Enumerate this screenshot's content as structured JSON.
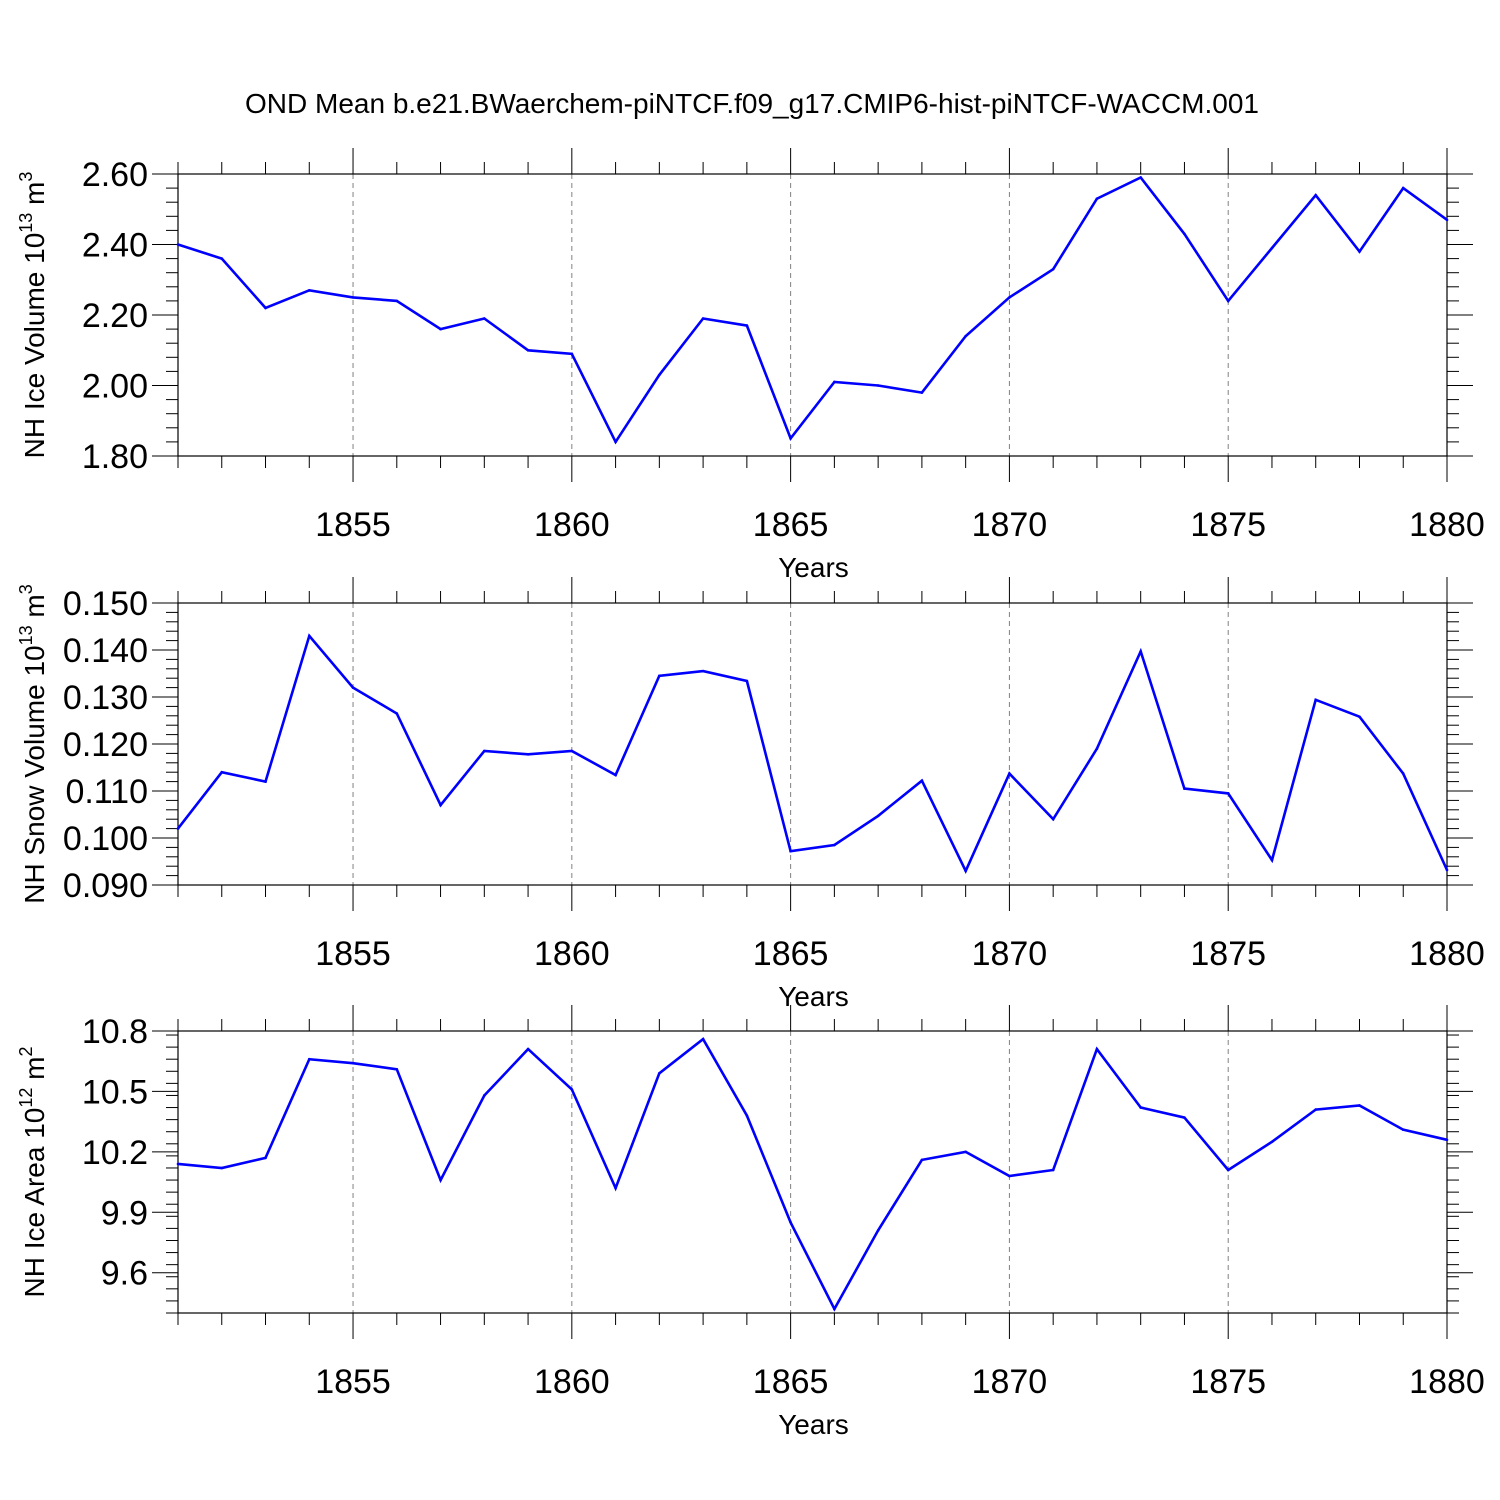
{
  "title": "OND Mean b.e21.BWaerchem-piNTCF.f09_g17.CMIP6-hist-piNTCF-WACCM.001",
  "colors": {
    "line": "#0000ff",
    "axis": "#000000",
    "grid": "#808080"
  },
  "chart_data": [
    {
      "type": "line",
      "ylabel": "NH Ice Volume 10",
      "ylabel_exp": "13",
      "ylabel_unit": " m",
      "ylabel_unit_exp": "3",
      "xlabel": "Years",
      "xlim": [
        1851,
        1880
      ],
      "ylim": [
        1.8,
        2.6
      ],
      "yticks": [
        1.8,
        2.0,
        2.2,
        2.4,
        2.6
      ],
      "ytick_labels": [
        "1.80",
        "2.00",
        "2.20",
        "2.40",
        "2.60"
      ],
      "xticks": [
        1855,
        1860,
        1865,
        1870,
        1875,
        1880
      ],
      "xtick_labels": [
        "1855",
        "1860",
        "1865",
        "1870",
        "1875",
        "1880"
      ],
      "x": [
        1851,
        1852,
        1853,
        1854,
        1855,
        1856,
        1857,
        1858,
        1859,
        1860,
        1861,
        1862,
        1863,
        1864,
        1865,
        1866,
        1867,
        1868,
        1869,
        1870,
        1871,
        1872,
        1873,
        1874,
        1875,
        1876,
        1877,
        1878,
        1879,
        1880
      ],
      "values": [
        2.4,
        2.36,
        2.22,
        2.27,
        2.25,
        2.24,
        2.16,
        2.19,
        2.1,
        2.09,
        1.84,
        2.03,
        2.19,
        2.17,
        1.85,
        2.01,
        2.0,
        1.98,
        2.14,
        2.25,
        2.33,
        2.53,
        2.59,
        2.43,
        2.24,
        2.39,
        2.54,
        2.38,
        2.56,
        2.47
      ]
    },
    {
      "type": "line",
      "ylabel": "NH Snow Volume 10",
      "ylabel_exp": "13",
      "ylabel_unit": " m",
      "ylabel_unit_exp": "3",
      "xlabel": "Years",
      "xlim": [
        1851,
        1880
      ],
      "ylim": [
        0.09,
        0.15
      ],
      "yticks": [
        0.09,
        0.1,
        0.11,
        0.12,
        0.13,
        0.14,
        0.15
      ],
      "ytick_labels": [
        "0.090",
        "0.100",
        "0.110",
        "0.120",
        "0.130",
        "0.140",
        "0.150"
      ],
      "xticks": [
        1855,
        1860,
        1865,
        1870,
        1875,
        1880
      ],
      "xtick_labels": [
        "1855",
        "1860",
        "1865",
        "1870",
        "1875",
        "1880"
      ],
      "x": [
        1851,
        1852,
        1853,
        1854,
        1855,
        1856,
        1857,
        1858,
        1859,
        1860,
        1861,
        1862,
        1863,
        1864,
        1865,
        1866,
        1867,
        1868,
        1869,
        1870,
        1871,
        1872,
        1873,
        1874,
        1875,
        1876,
        1877,
        1878,
        1879,
        1880
      ],
      "values": [
        0.102,
        0.114,
        0.112,
        0.143,
        0.132,
        0.1265,
        0.107,
        0.1185,
        0.1178,
        0.1185,
        0.1134,
        0.1345,
        0.1355,
        0.1334,
        0.0972,
        0.0985,
        0.1047,
        0.1122,
        0.093,
        0.1137,
        0.104,
        0.119,
        0.1397,
        0.1105,
        0.1095,
        0.0953,
        0.1294,
        0.1258,
        0.1137,
        0.0932
      ]
    },
    {
      "type": "line",
      "ylabel": "NH Ice Area 10",
      "ylabel_exp": "12",
      "ylabel_unit": " m",
      "ylabel_unit_exp": "2",
      "xlabel": "Years",
      "xlim": [
        1851,
        1880
      ],
      "ylim": [
        9.4,
        10.8
      ],
      "yticks": [
        9.6,
        9.9,
        10.2,
        10.5,
        10.8
      ],
      "ytick_labels": [
        "9.6",
        "9.9",
        "10.2",
        "10.5",
        "10.8"
      ],
      "xticks": [
        1855,
        1860,
        1865,
        1870,
        1875,
        1880
      ],
      "xtick_labels": [
        "1855",
        "1860",
        "1865",
        "1870",
        "1875",
        "1880"
      ],
      "x": [
        1851,
        1852,
        1853,
        1854,
        1855,
        1856,
        1857,
        1858,
        1859,
        1860,
        1861,
        1862,
        1863,
        1864,
        1865,
        1866,
        1867,
        1868,
        1869,
        1870,
        1871,
        1872,
        1873,
        1874,
        1875,
        1876,
        1877,
        1878,
        1879,
        1880
      ],
      "values": [
        10.14,
        10.12,
        10.17,
        10.66,
        10.64,
        10.61,
        10.06,
        10.48,
        10.71,
        10.51,
        10.02,
        10.59,
        10.76,
        10.38,
        9.85,
        9.42,
        9.81,
        10.16,
        10.2,
        10.08,
        10.11,
        10.71,
        10.42,
        10.37,
        10.11,
        10.25,
        10.41,
        10.43,
        10.31,
        10.26
      ]
    }
  ]
}
